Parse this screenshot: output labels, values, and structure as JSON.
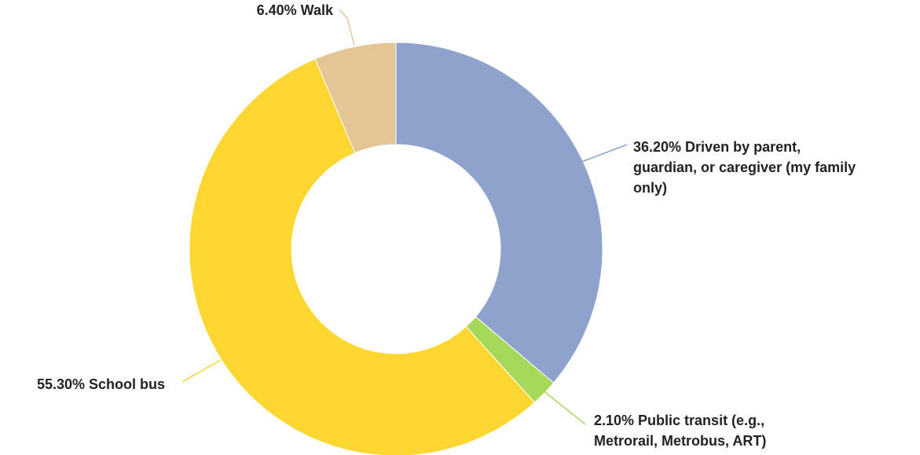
{
  "chart_data": {
    "type": "pie",
    "donut": true,
    "title": "",
    "slices": [
      {
        "label_lines": [
          "36.20% Driven by parent,",
          "guardian, or caregiver (my family",
          "only)"
        ],
        "value": 36.2,
        "color": "#8ea2cc"
      },
      {
        "label_lines": [
          "2.10% Public transit (e.g.,",
          "Metrorail, Metrobus, ART)"
        ],
        "value": 2.1,
        "color": "#a6d85a"
      },
      {
        "label_lines": [
          "55.30% School bus"
        ],
        "value": 55.3,
        "color": "#fdd731"
      },
      {
        "label_lines": [
          "6.40% Walk"
        ],
        "value": 6.4,
        "color": "#e4c595"
      }
    ]
  }
}
